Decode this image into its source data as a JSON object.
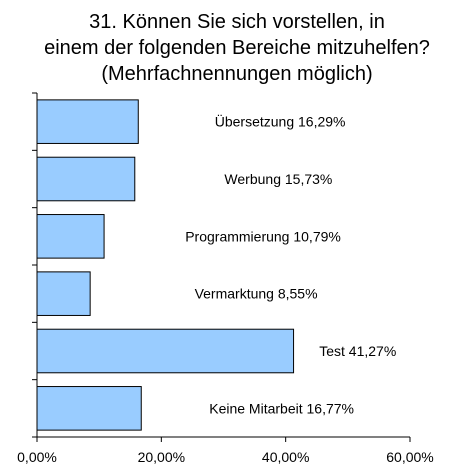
{
  "chart_data": {
    "type": "bar",
    "orientation": "horizontal",
    "title": [
      "31. Können Sie sich vorstellen, in",
      "einem der folgenden Bereiche mitzuhelfen?",
      "(Mehrfachnennungen möglich)"
    ],
    "categories": [
      "Übersetzung",
      "Werbung",
      "Programmierung",
      "Vermarktung",
      "Test",
      "Keine Mitarbeit"
    ],
    "values": [
      16.29,
      15.73,
      10.79,
      8.55,
      41.27,
      16.77
    ],
    "data_labels": [
      "Übersetzung 16,29%",
      "Werbung 15,73%",
      "Programmierung 10,79%",
      "Vermarktung 8,55%",
      "Test 41,27%",
      "Keine Mitarbeit 16,77%"
    ],
    "xlim": [
      0,
      60
    ],
    "x_ticks": [
      0,
      20,
      40,
      60
    ],
    "x_tick_labels": [
      "0,00%",
      "20,00%",
      "40,00%",
      "60,00%"
    ],
    "xlabel": "",
    "ylabel": "",
    "grid": false,
    "legend": "none",
    "colors": {
      "bar_fill": "#99ccff",
      "bar_stroke": "#000000",
      "axis": "#000000",
      "text": "#000000"
    }
  }
}
